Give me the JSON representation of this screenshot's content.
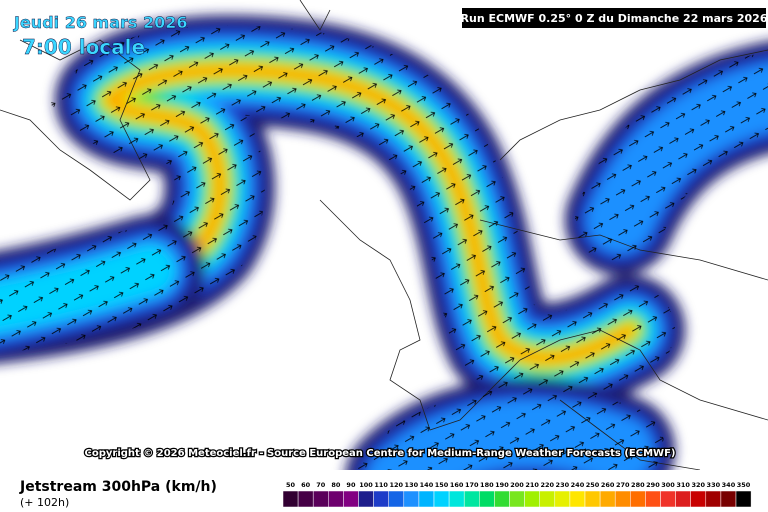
{
  "header": {
    "date": "Jeudi 26 mars 2026",
    "time": "7:00 locale",
    "run": "Run ECMWF 0.25° 0 Z du Dimanche 22 mars 2026"
  },
  "copyright": "Copyright © 2026 Meteociel.fr - Source European Centre for Medium-Range Weather Forecasts (ECMWF)",
  "footer": {
    "title": "Jetstream 300hPa (km/h)",
    "lead": "(+ 102h)"
  },
  "legend": {
    "values": [
      50,
      60,
      70,
      80,
      90,
      100,
      110,
      120,
      130,
      140,
      150,
      160,
      170,
      180,
      190,
      200,
      210,
      220,
      230,
      240,
      250,
      260,
      270,
      280,
      290,
      300,
      310,
      320,
      330,
      340,
      350
    ],
    "colors": [
      "#320032",
      "#460046",
      "#5a005a",
      "#6e006e",
      "#820082",
      "#1e1e8c",
      "#1e3cc8",
      "#1464e6",
      "#1e90ff",
      "#00b4ff",
      "#00d2ff",
      "#00e6dc",
      "#00e6a0",
      "#00dc64",
      "#32dc32",
      "#78e61e",
      "#a0f000",
      "#c8f000",
      "#e6f000",
      "#ffe600",
      "#ffc800",
      "#ffaa00",
      "#ff8c00",
      "#ff6e00",
      "#ff5014",
      "#f03228",
      "#dc1e1e",
      "#c80000",
      "#a00000",
      "#780000",
      "#000000"
    ]
  }
}
